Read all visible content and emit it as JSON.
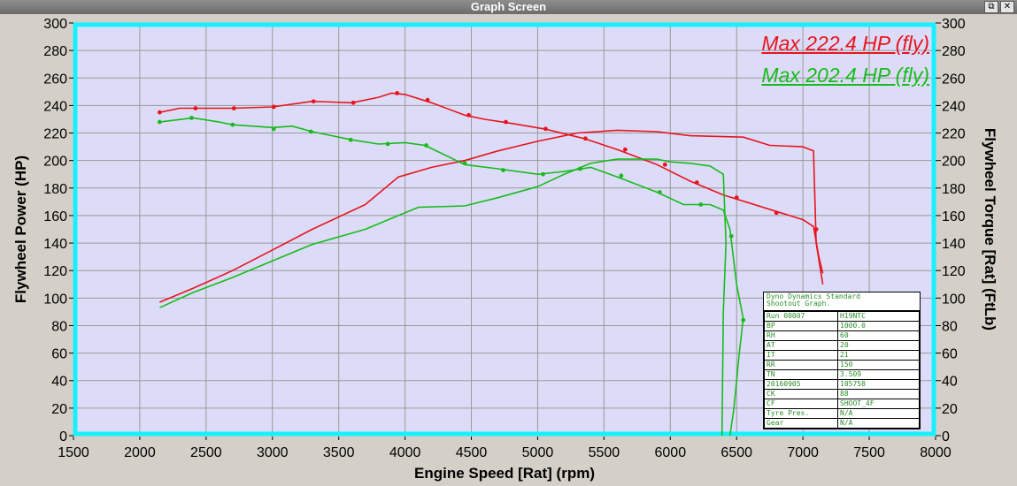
{
  "window": {
    "title": "Graph Screen",
    "restore_glyph": "⧉",
    "close_glyph": "✕"
  },
  "colors": {
    "plot_bg": "#dcdcf8",
    "plot_border": "#19f0ff",
    "red": "#e8141e",
    "green": "#18bb1c",
    "grid": "#999999"
  },
  "legend": [
    {
      "text": "Max 222.4 HP (fly)",
      "color": "#e8141e"
    },
    {
      "text": "Max 202.4 HP (fly)",
      "color": "#18bb1c"
    }
  ],
  "info_box": {
    "header": [
      "Dyno Dynamics Standard",
      "Shootout Graph."
    ],
    "rows": [
      [
        "Run 00007",
        "H19NTC"
      ],
      [
        "BP",
        "1000.0"
      ],
      [
        "RH",
        "60"
      ],
      [
        "AT",
        "20"
      ],
      [
        "IT",
        "21"
      ],
      [
        "RR",
        "150"
      ],
      [
        "TN",
        "3.509"
      ],
      [
        "20160905",
        "105758"
      ],
      [
        "CK",
        "88"
      ],
      [
        "CF",
        "SHOOT_4F"
      ],
      [
        "Tyre Pres.",
        "N/A"
      ],
      [
        "Gear",
        "N/A"
      ]
    ]
  },
  "chart_data": {
    "type": "line",
    "xlabel": "Engine Speed [Rat] (rpm)",
    "ylabel": "Flywheel Power (HP)",
    "y2label": "Flywheel Torque [Rat] (FtLb)",
    "xlim": [
      1500,
      8000
    ],
    "ylim": [
      0,
      300
    ],
    "y2lim": [
      0,
      300
    ],
    "x_ticks": [
      1500,
      2000,
      2500,
      3000,
      3500,
      4000,
      4500,
      5000,
      5500,
      6000,
      6500,
      7000,
      7500,
      8000
    ],
    "y_ticks": [
      0,
      20,
      40,
      60,
      80,
      100,
      120,
      140,
      160,
      180,
      200,
      220,
      240,
      260,
      280,
      300
    ],
    "y2_ticks": [
      0,
      20,
      40,
      60,
      80,
      100,
      120,
      140,
      160,
      180,
      200,
      220,
      240,
      260,
      280,
      300
    ],
    "grid": true,
    "series": [
      {
        "color": "#e8141e",
        "kind": "power",
        "points": [
          [
            2150,
            97
          ],
          [
            2400,
            107
          ],
          [
            2700,
            120
          ],
          [
            3000,
            135
          ],
          [
            3300,
            150
          ],
          [
            3700,
            168
          ],
          [
            3950,
            188
          ],
          [
            4200,
            195
          ],
          [
            4450,
            200
          ],
          [
            4700,
            207
          ],
          [
            5000,
            214
          ],
          [
            5300,
            220
          ],
          [
            5600,
            222
          ],
          [
            5900,
            221
          ],
          [
            6150,
            218
          ],
          [
            6550,
            217
          ],
          [
            6750,
            211
          ],
          [
            7000,
            210
          ],
          [
            7080,
            207
          ],
          [
            7100,
            140
          ],
          [
            7150,
            110
          ]
        ],
        "markers": []
      },
      {
        "color": "#e8141e",
        "kind": "torque",
        "points": [
          [
            2150,
            235
          ],
          [
            2300,
            238
          ],
          [
            2700,
            238
          ],
          [
            3000,
            239
          ],
          [
            3300,
            243
          ],
          [
            3600,
            242
          ],
          [
            3800,
            246
          ],
          [
            3900,
            249
          ],
          [
            4000,
            248
          ],
          [
            4200,
            242
          ],
          [
            4450,
            233
          ],
          [
            4600,
            230
          ],
          [
            4800,
            227
          ],
          [
            5050,
            223
          ],
          [
            5350,
            216
          ],
          [
            5600,
            208
          ],
          [
            5900,
            197
          ],
          [
            6150,
            185
          ],
          [
            6400,
            175
          ],
          [
            6800,
            163
          ],
          [
            7000,
            157
          ],
          [
            7080,
            152
          ],
          [
            7120,
            130
          ],
          [
            7150,
            118
          ]
        ],
        "markers": [
          [
            2150,
            235
          ],
          [
            2420,
            238
          ],
          [
            2710,
            238
          ],
          [
            3010,
            239
          ],
          [
            3310,
            243
          ],
          [
            3610,
            242
          ],
          [
            3940,
            249
          ],
          [
            4170,
            244
          ],
          [
            4480,
            233
          ],
          [
            4760,
            228
          ],
          [
            5060,
            223
          ],
          [
            5360,
            216
          ],
          [
            5660,
            208
          ],
          [
            5960,
            197
          ],
          [
            6200,
            184
          ],
          [
            6500,
            173
          ],
          [
            6800,
            162
          ],
          [
            7100,
            150
          ]
        ]
      },
      {
        "color": "#18bb1c",
        "kind": "power",
        "points": [
          [
            2150,
            93
          ],
          [
            2400,
            104
          ],
          [
            2700,
            115
          ],
          [
            3000,
            127
          ],
          [
            3300,
            139
          ],
          [
            3700,
            150
          ],
          [
            3900,
            158
          ],
          [
            4100,
            166
          ],
          [
            4450,
            167
          ],
          [
            4700,
            173
          ],
          [
            5000,
            181
          ],
          [
            5200,
            190
          ],
          [
            5400,
            198
          ],
          [
            5600,
            201
          ],
          [
            5900,
            201
          ],
          [
            6000,
            199
          ],
          [
            6150,
            198
          ],
          [
            6300,
            196
          ],
          [
            6400,
            190
          ],
          [
            6420,
            140
          ],
          [
            6400,
            90
          ],
          [
            6390,
            0
          ]
        ],
        "markers": []
      },
      {
        "color": "#18bb1c",
        "kind": "torque",
        "points": [
          [
            2150,
            228
          ],
          [
            2400,
            231
          ],
          [
            2600,
            228
          ],
          [
            2700,
            226
          ],
          [
            3000,
            224
          ],
          [
            3150,
            225
          ],
          [
            3300,
            221
          ],
          [
            3450,
            218
          ],
          [
            3600,
            215
          ],
          [
            3800,
            212
          ],
          [
            4000,
            213
          ],
          [
            4150,
            211
          ],
          [
            4300,
            204
          ],
          [
            4450,
            197
          ],
          [
            4700,
            194
          ],
          [
            5000,
            190
          ],
          [
            5200,
            192
          ],
          [
            5400,
            195
          ],
          [
            5600,
            188
          ],
          [
            5900,
            177
          ],
          [
            6100,
            168
          ],
          [
            6300,
            168
          ],
          [
            6400,
            164
          ],
          [
            6450,
            150
          ],
          [
            6500,
            110
          ],
          [
            6550,
            85
          ],
          [
            6520,
            60
          ],
          [
            6480,
            20
          ],
          [
            6450,
            0
          ]
        ],
        "markers": [
          [
            2150,
            228
          ],
          [
            2390,
            231
          ],
          [
            2700,
            226
          ],
          [
            3010,
            223
          ],
          [
            3290,
            221
          ],
          [
            3590,
            215
          ],
          [
            3870,
            212
          ],
          [
            4160,
            211
          ],
          [
            4450,
            198
          ],
          [
            4740,
            193
          ],
          [
            5040,
            190
          ],
          [
            5320,
            194
          ],
          [
            5630,
            189
          ],
          [
            5920,
            177
          ],
          [
            6230,
            168
          ],
          [
            6460,
            145
          ],
          [
            6550,
            84
          ]
        ]
      }
    ]
  }
}
